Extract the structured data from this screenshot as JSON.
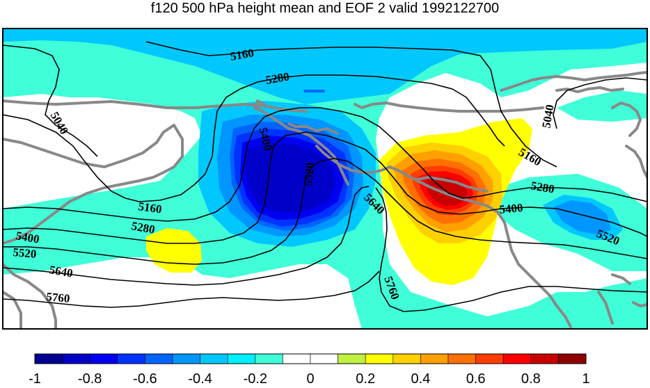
{
  "title": "f120 500 hPa height mean and EOF 2 valid 1992122700",
  "contour_labels": {
    "c5160_top": "5160",
    "c5280_top": "5280",
    "c5040_left": "5040",
    "c5040_right": "5040",
    "c5400_center": "5400",
    "c5520_center": "5520",
    "c5160_right": "5160",
    "c5280_right": "5280",
    "c5400_right": "5400",
    "c5520_right": "5520",
    "c5640_mid": "5640",
    "c5160_left": "5160",
    "c5280_left": "5280",
    "c5400_left": "5400",
    "c5520_left": "5520",
    "c5640_left": "5640",
    "c5760_left": "5760",
    "c5760_mid": "5760"
  },
  "colorbar": {
    "colors": [
      "#00008f",
      "#0000c8",
      "#0000f0",
      "#0032ff",
      "#0064ff",
      "#0096ff",
      "#00c8ff",
      "#00f0ff",
      "#40ffd8",
      "#ffffff",
      "#ffffff",
      "#c0f040",
      "#ffff00",
      "#ffd000",
      "#ffa000",
      "#ff7000",
      "#ff3c00",
      "#ff0000",
      "#c80000",
      "#8f0000"
    ],
    "tick_labels": [
      "-1",
      "-0.8",
      "-0.6",
      "-0.4",
      "-0.2",
      "0",
      "0.2",
      "0.4",
      "0.6",
      "0.8",
      "1"
    ]
  }
}
